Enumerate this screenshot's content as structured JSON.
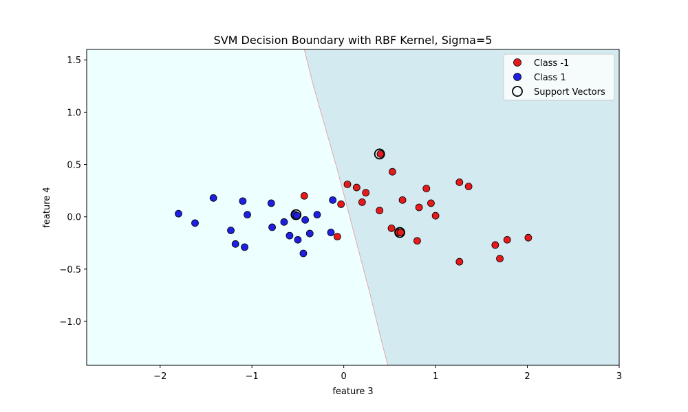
{
  "chart_data": {
    "type": "scatter",
    "title": "SVM Decision Boundary with RBF Kernel, Sigma=5",
    "xlabel": "feature 3",
    "ylabel": "feature 4",
    "xlim": [
      -2.8,
      3.0
    ],
    "ylim": [
      -1.42,
      1.6
    ],
    "xticks": [
      -2,
      -1,
      0,
      1,
      2,
      3
    ],
    "xtick_labels": [
      "−2",
      "−1",
      "0",
      "1",
      "2",
      "3"
    ],
    "yticks": [
      -1.0,
      -0.5,
      0.0,
      0.5,
      1.0,
      1.5
    ],
    "ytick_labels": [
      "−1.0",
      "−0.5",
      "0.0",
      "0.5",
      "1.0",
      "1.5"
    ],
    "grid": false,
    "legend_position": "upper right",
    "regions": {
      "class_minus1_color": "#d3eaf0",
      "class_1_color": "#eeffff",
      "boundary_color": "#e3a6ae",
      "boundary": [
        [
          -0.43,
          1.6
        ],
        [
          -0.33,
          1.25
        ],
        [
          -0.2,
          0.85
        ],
        [
          -0.07,
          0.45
        ],
        [
          0.05,
          0.05
        ],
        [
          0.17,
          -0.35
        ],
        [
          0.29,
          -0.75
        ],
        [
          0.4,
          -1.15
        ],
        [
          0.48,
          -1.42
        ]
      ]
    },
    "series": [
      {
        "name": "Class -1",
        "color": "#e41a1c",
        "points": [
          [
            -0.43,
            0.2
          ],
          [
            -0.03,
            0.12
          ],
          [
            -0.07,
            -0.19
          ],
          [
            0.04,
            0.31
          ],
          [
            0.14,
            0.28
          ],
          [
            0.2,
            0.14
          ],
          [
            0.24,
            0.23
          ],
          [
            0.39,
            0.06
          ],
          [
            0.4,
            0.6
          ],
          [
            0.52,
            -0.11
          ],
          [
            0.53,
            0.43
          ],
          [
            0.6,
            -0.15
          ],
          [
            0.62,
            -0.15
          ],
          [
            0.64,
            0.16
          ],
          [
            0.8,
            -0.23
          ],
          [
            0.82,
            0.09
          ],
          [
            0.9,
            0.27
          ],
          [
            0.95,
            0.13
          ],
          [
            1.0,
            0.01
          ],
          [
            1.26,
            0.33
          ],
          [
            1.36,
            0.29
          ],
          [
            1.26,
            -0.43
          ],
          [
            1.65,
            -0.27
          ],
          [
            1.7,
            -0.4
          ],
          [
            1.78,
            -0.22
          ],
          [
            2.01,
            -0.2
          ]
        ]
      },
      {
        "name": "Class 1",
        "color": "#1f1fe0",
        "points": [
          [
            -1.8,
            0.03
          ],
          [
            -1.62,
            -0.06
          ],
          [
            -1.42,
            0.18
          ],
          [
            -1.23,
            -0.13
          ],
          [
            -1.18,
            -0.26
          ],
          [
            -1.1,
            0.15
          ],
          [
            -1.08,
            -0.29
          ],
          [
            -1.05,
            0.02
          ],
          [
            -0.79,
            0.13
          ],
          [
            -0.78,
            -0.1
          ],
          [
            -0.65,
            -0.05
          ],
          [
            -0.59,
            -0.18
          ],
          [
            -0.53,
            0.02
          ],
          [
            -0.51,
            0.01
          ],
          [
            -0.5,
            -0.22
          ],
          [
            -0.44,
            -0.35
          ],
          [
            -0.42,
            -0.03
          ],
          [
            -0.37,
            -0.16
          ],
          [
            -0.29,
            0.02
          ],
          [
            -0.14,
            -0.15
          ],
          [
            -0.12,
            0.16
          ]
        ]
      },
      {
        "name": "Support Vectors",
        "color": "#000000",
        "points": [
          [
            -0.52,
            0.02
          ],
          [
            0.39,
            0.6
          ],
          [
            0.61,
            -0.15
          ]
        ]
      }
    ]
  }
}
